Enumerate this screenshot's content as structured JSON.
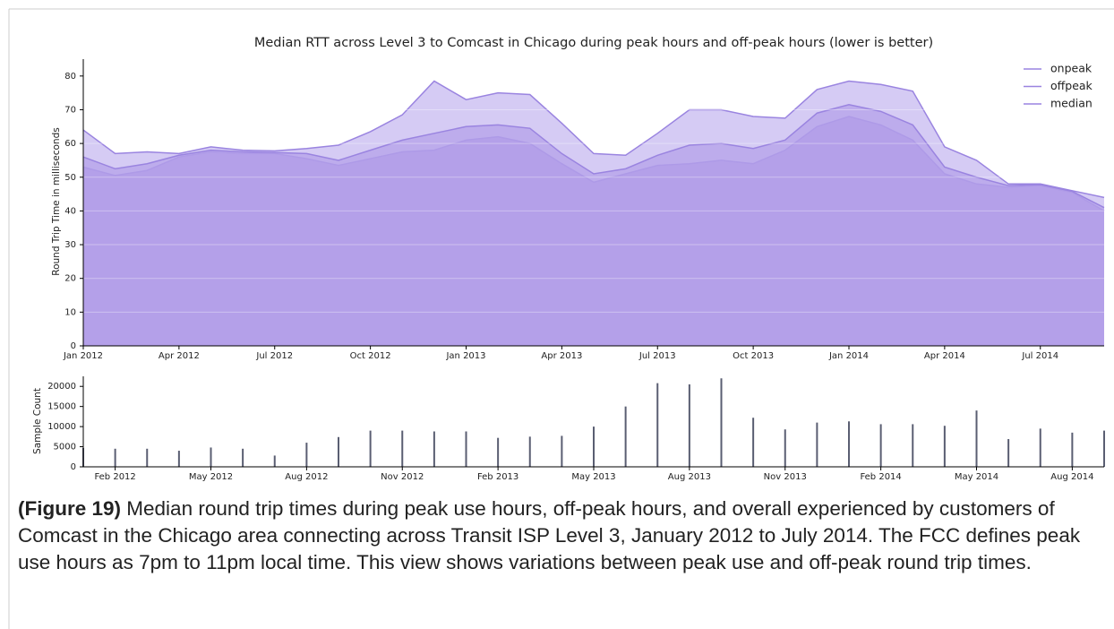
{
  "chart_data": [
    {
      "type": "area",
      "title": "Median RTT across Level 3 to Comcast in Chicago during peak hours and off-peak hours (lower is better)",
      "y_label": "Round Trip Time in milliseconds",
      "x": [
        "2012-01",
        "2012-02",
        "2012-03",
        "2012-04",
        "2012-05",
        "2012-06",
        "2012-07",
        "2012-08",
        "2012-09",
        "2012-10",
        "2012-11",
        "2012-12",
        "2013-01",
        "2013-02",
        "2013-03",
        "2013-04",
        "2013-05",
        "2013-06",
        "2013-07",
        "2013-08",
        "2013-09",
        "2013-10",
        "2013-11",
        "2013-12",
        "2014-01",
        "2014-02",
        "2014-03",
        "2014-04",
        "2014-05",
        "2014-06",
        "2014-07",
        "2014-08",
        "2014-09"
      ],
      "series": [
        {
          "name": "onpeak",
          "color": "#c7baf0",
          "line_color": "#9a84e0",
          "values": [
            64,
            57,
            57.5,
            57,
            59,
            58,
            57.8,
            58.5,
            59.5,
            63.5,
            68.5,
            78.5,
            73,
            75,
            74.5,
            66,
            57,
            56.5,
            63,
            70,
            70,
            68,
            67.5,
            76,
            78.5,
            77.5,
            75.5,
            59,
            55,
            48,
            48,
            46,
            44
          ]
        },
        {
          "name": "offpeak",
          "color": "#a58be4",
          "line_color": "#9a84e0",
          "values": [
            53,
            50.5,
            52,
            56,
            57.5,
            57,
            57,
            55.5,
            53.5,
            55.5,
            57.5,
            58,
            61,
            62,
            60,
            54,
            48.5,
            51,
            53.5,
            54,
            55,
            54,
            58,
            65,
            68,
            65.5,
            61,
            51,
            48,
            47,
            47.5,
            45.5,
            40
          ]
        },
        {
          "name": "median",
          "color": "#b4a1ea",
          "line_color": "#9a84e0",
          "values": [
            56,
            52.5,
            54,
            56.5,
            58,
            57.5,
            57.3,
            57,
            55,
            58,
            61,
            63,
            65,
            65.5,
            64.5,
            57,
            51,
            52.5,
            56.5,
            59.5,
            60,
            58.5,
            61,
            69,
            71.5,
            69.5,
            65.5,
            53,
            50,
            47.5,
            47.8,
            45.8,
            41
          ]
        }
      ],
      "xlim": [
        "2012-01",
        "2014-09"
      ],
      "xticks": [
        {
          "value": "2012-01",
          "label": "Jan 2012"
        },
        {
          "value": "2012-04",
          "label": "Apr 2012"
        },
        {
          "value": "2012-07",
          "label": "Jul 2012"
        },
        {
          "value": "2012-10",
          "label": "Oct 2012"
        },
        {
          "value": "2013-01",
          "label": "Jan 2013"
        },
        {
          "value": "2013-04",
          "label": "Apr 2013"
        },
        {
          "value": "2013-07",
          "label": "Jul 2013"
        },
        {
          "value": "2013-10",
          "label": "Oct 2013"
        },
        {
          "value": "2014-01",
          "label": "Jan 2014"
        },
        {
          "value": "2014-04",
          "label": "Apr 2014"
        },
        {
          "value": "2014-07",
          "label": "Jul 2014"
        }
      ],
      "ylim": [
        0,
        85
      ],
      "yticks": [
        0,
        10,
        20,
        30,
        40,
        50,
        60,
        70,
        80
      ],
      "grid": true,
      "legend": "upper right"
    },
    {
      "type": "bar",
      "y_label": "Sample Count",
      "x": [
        "2012-01",
        "2012-02",
        "2012-03",
        "2012-04",
        "2012-05",
        "2012-06",
        "2012-07",
        "2012-08",
        "2012-09",
        "2012-10",
        "2012-11",
        "2012-12",
        "2013-01",
        "2013-02",
        "2013-03",
        "2013-04",
        "2013-05",
        "2013-06",
        "2013-07",
        "2013-08",
        "2013-09",
        "2013-10",
        "2013-11",
        "2013-12",
        "2014-01",
        "2014-02",
        "2014-03",
        "2014-04",
        "2014-05",
        "2014-06",
        "2014-07",
        "2014-08",
        "2014-09"
      ],
      "values": [
        4700,
        4500,
        4500,
        4000,
        4800,
        4500,
        2800,
        6000,
        7400,
        9000,
        9000,
        8800,
        8800,
        7200,
        7500,
        7700,
        10000,
        15000,
        20800,
        20500,
        22000,
        12200,
        9300,
        11000,
        11300,
        10600,
        10600,
        10200,
        14000,
        6900,
        9500,
        8500,
        9000
      ],
      "color": "#5a5e72",
      "xlim": [
        "2012-01",
        "2014-09"
      ],
      "xticks": [
        {
          "value": "2012-02",
          "label": "Feb 2012"
        },
        {
          "value": "2012-05",
          "label": "May 2012"
        },
        {
          "value": "2012-08",
          "label": "Aug 2012"
        },
        {
          "value": "2012-11",
          "label": "Nov 2012"
        },
        {
          "value": "2013-02",
          "label": "Feb 2013"
        },
        {
          "value": "2013-05",
          "label": "May 2013"
        },
        {
          "value": "2013-08",
          "label": "Aug 2013"
        },
        {
          "value": "2013-11",
          "label": "Nov 2013"
        },
        {
          "value": "2014-02",
          "label": "Feb 2014"
        },
        {
          "value": "2014-05",
          "label": "May 2014"
        },
        {
          "value": "2014-08",
          "label": "Aug 2014"
        }
      ],
      "ylim": [
        0,
        22500
      ],
      "yticks": [
        0,
        5000,
        10000,
        15000,
        20000
      ]
    }
  ],
  "caption": {
    "label": "(Figure 19)",
    "text": " Median round trip times during peak use hours, off-peak hours, and overall experienced by customers of Comcast in the Chicago area connecting across Transit ISP Level 3, January 2012 to July 2014. The FCC defines peak use hours as 7pm to 11pm local time. This view shows variations between peak use and off-peak round trip times."
  }
}
